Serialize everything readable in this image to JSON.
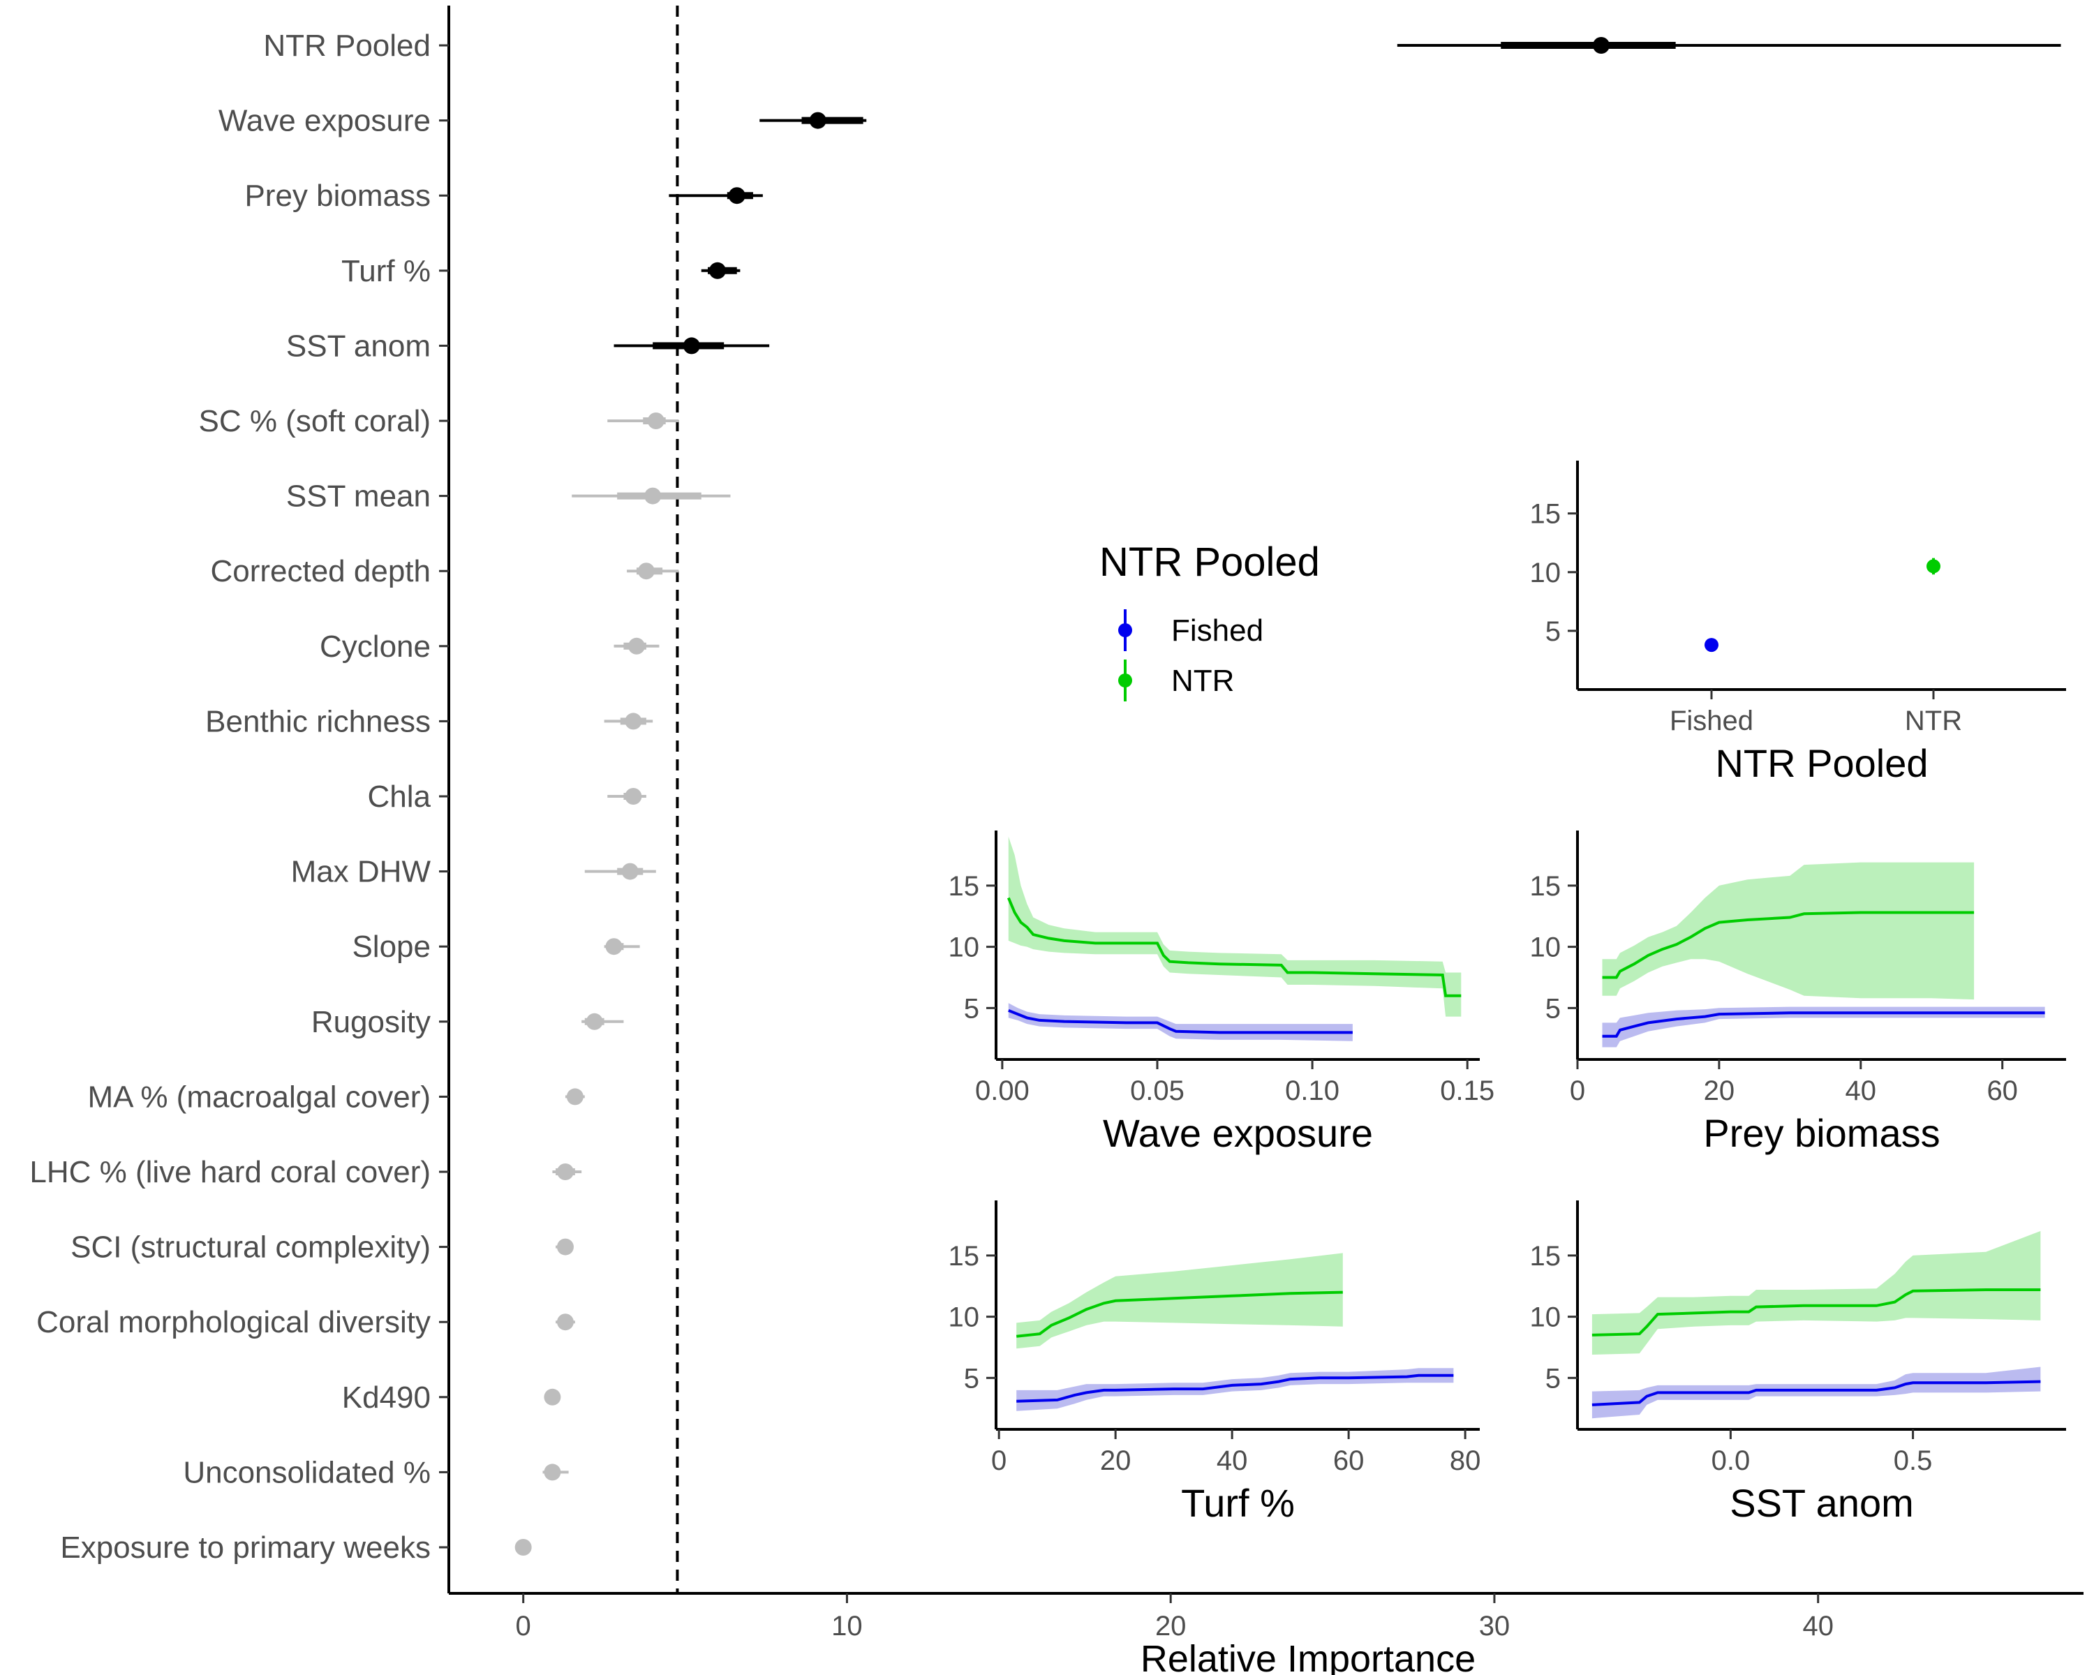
{
  "chart_data": {
    "type": "scatter",
    "main": {
      "xlabel": "Relative Importance",
      "xlim": [
        -2.3,
        48.2
      ],
      "xticks": [
        0,
        10,
        20,
        30,
        40
      ],
      "threshold": 4.76,
      "variables": [
        {
          "name": "NTR Pooled",
          "value": 33.3,
          "inner": [
            30.2,
            35.6
          ],
          "outer": [
            27.0,
            47.5
          ],
          "significant": true
        },
        {
          "name": "Wave exposure",
          "value": 9.1,
          "inner": [
            8.6,
            10.5
          ],
          "outer": [
            7.3,
            10.6
          ],
          "significant": true
        },
        {
          "name": "Prey biomass",
          "value": 6.6,
          "inner": [
            6.3,
            7.1
          ],
          "outer": [
            4.5,
            7.4
          ],
          "significant": true
        },
        {
          "name": "Turf %",
          "value": 6.0,
          "inner": [
            5.7,
            6.6
          ],
          "outer": [
            5.5,
            6.7
          ],
          "significant": true
        },
        {
          "name": "SST anom",
          "value": 5.2,
          "inner": [
            4.0,
            6.2
          ],
          "outer": [
            2.8,
            7.6
          ],
          "significant": true
        },
        {
          "name": "SC % (soft coral)",
          "value": 4.1,
          "inner": [
            3.7,
            4.4
          ],
          "outer": [
            2.6,
            4.8
          ],
          "significant": false
        },
        {
          "name": "SST mean",
          "value": 4.0,
          "inner": [
            2.9,
            5.5
          ],
          "outer": [
            1.5,
            6.4
          ],
          "significant": false
        },
        {
          "name": "Corrected depth",
          "value": 3.8,
          "inner": [
            3.5,
            4.3
          ],
          "outer": [
            3.2,
            4.8
          ],
          "significant": false
        },
        {
          "name": "Cyclone",
          "value": 3.5,
          "inner": [
            3.1,
            3.8
          ],
          "outer": [
            2.8,
            4.2
          ],
          "significant": false
        },
        {
          "name": "Benthic richness",
          "value": 3.4,
          "inner": [
            3.0,
            3.8
          ],
          "outer": [
            2.5,
            4.0
          ],
          "significant": false
        },
        {
          "name": "Chla",
          "value": 3.4,
          "inner": [
            3.1,
            3.6
          ],
          "outer": [
            2.6,
            3.8
          ],
          "significant": false
        },
        {
          "name": "Max DHW",
          "value": 3.3,
          "inner": [
            2.9,
            3.7
          ],
          "outer": [
            1.9,
            4.1
          ],
          "significant": false
        },
        {
          "name": "Slope",
          "value": 2.8,
          "inner": [
            2.6,
            3.1
          ],
          "outer": [
            2.5,
            3.6
          ],
          "significant": false
        },
        {
          "name": "Rugosity",
          "value": 2.2,
          "inner": [
            1.9,
            2.5
          ],
          "outer": [
            1.8,
            3.1
          ],
          "significant": false
        },
        {
          "name": "MA % (macroalgal cover)",
          "value": 1.6,
          "inner": [
            1.4,
            1.8
          ],
          "outer": [
            1.3,
            1.9
          ],
          "significant": false
        },
        {
          "name": "LHC % (live hard coral cover)",
          "value": 1.3,
          "inner": [
            1.0,
            1.6
          ],
          "outer": [
            0.9,
            1.8
          ],
          "significant": false
        },
        {
          "name": "SCI (structural complexity)",
          "value": 1.3,
          "inner": [
            1.1,
            1.4
          ],
          "outer": [
            1.0,
            1.5
          ],
          "significant": false
        },
        {
          "name": "Coral morphological diversity",
          "value": 1.3,
          "inner": [
            1.1,
            1.5
          ],
          "outer": [
            1.0,
            1.6
          ],
          "significant": false
        },
        {
          "name": "Kd490",
          "value": 0.9,
          "inner": [
            0.8,
            1.0
          ],
          "outer": [
            0.7,
            1.1
          ],
          "significant": false
        },
        {
          "name": "Unconsolidated %",
          "value": 0.9,
          "inner": [
            0.7,
            1.1
          ],
          "outer": [
            0.6,
            1.4
          ],
          "significant": false
        },
        {
          "name": "Exposure to primary weeks",
          "value": 0.0,
          "inner": [
            -0.1,
            0.1
          ],
          "outer": [
            -0.1,
            0.1
          ],
          "significant": false
        }
      ]
    },
    "legend": {
      "title": "NTR Pooled",
      "entries": [
        {
          "label": "Fished",
          "color": "#0000ee"
        },
        {
          "label": "NTR",
          "color": "#00cc00"
        }
      ]
    },
    "insets": [
      {
        "key": "ntr",
        "type": "point",
        "title": "NTR Pooled",
        "categories": [
          "Fished",
          "NTR"
        ],
        "ylim": [
          0,
          19.5
        ],
        "yticks": [
          5,
          10,
          15
        ],
        "points": [
          {
            "category": "Fished",
            "y": 3.8,
            "lo": 3.5,
            "hi": 4.1,
            "color": "#0000ee"
          },
          {
            "category": "NTR",
            "y": 10.5,
            "lo": 9.8,
            "hi": 11.2,
            "color": "#00cc00"
          }
        ]
      },
      {
        "key": "wave",
        "type": "line",
        "title": "Wave exposure",
        "xlim": [
          -0.002,
          0.154
        ],
        "ylim": [
          0.8,
          19.5
        ],
        "xticks": [
          "0.00",
          "0.05",
          "0.10",
          "0.15"
        ],
        "yticks": [
          5,
          10,
          15
        ],
        "series": [
          {
            "name": "NTR",
            "color": "#00cc00",
            "fill": "#b4eeb4",
            "x": [
              0.002,
              0.004,
              0.006,
              0.008,
              0.01,
              0.015,
              0.02,
              0.03,
              0.05,
              0.052,
              0.054,
              0.06,
              0.07,
              0.09,
              0.092,
              0.1,
              0.12,
              0.142,
              0.143,
              0.148
            ],
            "y": [
              14.0,
              12.8,
              12.0,
              11.6,
              11.0,
              10.7,
              10.5,
              10.3,
              10.3,
              9.3,
              8.8,
              8.7,
              8.6,
              8.5,
              7.9,
              7.9,
              7.8,
              7.7,
              6.0,
              6.0
            ],
            "lo": [
              10.5,
              10.3,
              10.1,
              10.0,
              9.8,
              9.6,
              9.5,
              9.4,
              9.4,
              8.4,
              7.9,
              7.8,
              7.7,
              7.5,
              6.9,
              6.9,
              6.8,
              6.6,
              4.3,
              4.3
            ],
            "hi": [
              19.0,
              17.5,
              15.0,
              13.5,
              12.4,
              11.8,
              11.5,
              11.2,
              11.2,
              10.2,
              9.7,
              9.6,
              9.5,
              9.4,
              8.9,
              8.9,
              8.9,
              8.8,
              7.9,
              7.9
            ]
          },
          {
            "name": "Fished",
            "color": "#0000ee",
            "fill": "#b4b4ee",
            "x": [
              0.002,
              0.005,
              0.008,
              0.012,
              0.02,
              0.04,
              0.05,
              0.054,
              0.056,
              0.07,
              0.09,
              0.113
            ],
            "y": [
              4.8,
              4.5,
              4.2,
              4.0,
              3.9,
              3.8,
              3.8,
              3.3,
              3.1,
              3.0,
              3.0,
              3.0
            ],
            "lo": [
              4.2,
              4.0,
              3.7,
              3.5,
              3.4,
              3.3,
              3.3,
              2.7,
              2.5,
              2.4,
              2.4,
              2.3
            ],
            "hi": [
              5.4,
              5.0,
              4.7,
              4.5,
              4.4,
              4.3,
              4.3,
              3.9,
              3.7,
              3.7,
              3.7,
              3.7
            ]
          }
        ]
      },
      {
        "key": "prey",
        "type": "line",
        "title": "Prey biomass",
        "xlim": [
          0,
          69
        ],
        "ylim": [
          0.8,
          19.5
        ],
        "xticks": [
          "0",
          "20",
          "40",
          "60"
        ],
        "yticks": [
          5,
          10,
          15
        ],
        "series": [
          {
            "name": "NTR",
            "color": "#00cc00",
            "fill": "#b4eeb4",
            "x": [
              3.5,
              5.5,
              6,
              8,
              10,
              12,
              14,
              16,
              18,
              20,
              24,
              30,
              32,
              40,
              50,
              56
            ],
            "y": [
              7.5,
              7.5,
              8.0,
              8.6,
              9.3,
              9.8,
              10.2,
              10.8,
              11.5,
              12.0,
              12.2,
              12.4,
              12.7,
              12.8,
              12.8,
              12.8
            ],
            "lo": [
              6.0,
              6.0,
              6.6,
              7.2,
              7.9,
              8.4,
              8.7,
              9.0,
              9.0,
              8.8,
              7.8,
              6.5,
              6.0,
              5.8,
              5.8,
              5.7
            ],
            "hi": [
              9.0,
              9.0,
              9.5,
              10.1,
              10.8,
              11.2,
              11.7,
              12.8,
              14.0,
              15.0,
              15.5,
              15.8,
              16.7,
              16.9,
              16.9,
              16.9
            ]
          },
          {
            "name": "Fished",
            "color": "#0000ee",
            "fill": "#b4b4ee",
            "x": [
              3.5,
              5.5,
              6,
              8,
              10,
              14,
              18,
              20,
              30,
              40,
              50,
              66
            ],
            "y": [
              2.7,
              2.7,
              3.2,
              3.5,
              3.8,
              4.1,
              4.3,
              4.5,
              4.6,
              4.6,
              4.6,
              4.6
            ],
            "lo": [
              1.8,
              1.8,
              2.3,
              2.7,
              3.1,
              3.5,
              3.8,
              4.1,
              4.2,
              4.2,
              4.2,
              4.2
            ],
            "hi": [
              3.8,
              3.8,
              4.2,
              4.4,
              4.6,
              4.8,
              4.9,
              5.0,
              5.1,
              5.1,
              5.1,
              5.1
            ]
          }
        ]
      },
      {
        "key": "turf",
        "type": "line",
        "title": "Turf %",
        "xlim": [
          -0.5,
          82.5
        ],
        "ylim": [
          0.8,
          19.5
        ],
        "xticks": [
          "0",
          "20",
          "40",
          "60",
          "80"
        ],
        "yticks": [
          5,
          10,
          15
        ],
        "series": [
          {
            "name": "NTR",
            "color": "#00cc00",
            "fill": "#b4eeb4",
            "x": [
              3,
              7,
              9,
              12,
              15,
              18,
              20,
              30,
              40,
              50,
              59
            ],
            "y": [
              8.4,
              8.6,
              9.3,
              9.9,
              10.6,
              11.1,
              11.3,
              11.5,
              11.7,
              11.9,
              12.0
            ],
            "lo": [
              7.4,
              7.6,
              8.3,
              8.8,
              9.3,
              9.6,
              9.6,
              9.5,
              9.4,
              9.3,
              9.2
            ],
            "hi": [
              9.5,
              9.7,
              10.4,
              11.1,
              12.0,
              12.8,
              13.3,
              13.7,
              14.2,
              14.7,
              15.2
            ]
          },
          {
            "name": "Fished",
            "color": "#0000ee",
            "fill": "#b4b4ee",
            "x": [
              3,
              10,
              13,
              15,
              18,
              20,
              30,
              35,
              40,
              45,
              48,
              50,
              55,
              60,
              70,
              72,
              78
            ],
            "y": [
              3.1,
              3.2,
              3.6,
              3.8,
              4.0,
              4.0,
              4.1,
              4.1,
              4.4,
              4.5,
              4.7,
              4.9,
              5.0,
              5.0,
              5.1,
              5.2,
              5.2
            ],
            "lo": [
              2.3,
              2.5,
              2.9,
              3.2,
              3.5,
              3.5,
              3.6,
              3.6,
              3.9,
              4.0,
              4.2,
              4.4,
              4.5,
              4.5,
              4.6,
              4.6,
              4.6
            ],
            "hi": [
              4.0,
              4.0,
              4.3,
              4.5,
              4.5,
              4.5,
              4.6,
              4.6,
              4.9,
              5.0,
              5.2,
              5.4,
              5.5,
              5.5,
              5.7,
              5.8,
              5.8
            ]
          }
        ]
      },
      {
        "key": "sst",
        "type": "line",
        "title": "SST anom",
        "xlim": [
          -0.42,
          0.92
        ],
        "ylim": [
          0.8,
          19.5
        ],
        "xticks": [
          "0.0",
          "0.5"
        ],
        "xtick_values": [
          0.0,
          0.5
        ],
        "yticks": [
          5,
          10,
          15
        ],
        "series": [
          {
            "name": "NTR",
            "color": "#00cc00",
            "fill": "#b4eeb4",
            "x": [
              -0.38,
              -0.25,
              -0.23,
              -0.2,
              -0.1,
              0.0,
              0.05,
              0.07,
              0.2,
              0.4,
              0.45,
              0.48,
              0.5,
              0.7,
              0.85
            ],
            "y": [
              8.5,
              8.6,
              9.2,
              10.2,
              10.3,
              10.4,
              10.4,
              10.8,
              10.9,
              10.9,
              11.2,
              11.8,
              12.1,
              12.2,
              12.2
            ],
            "lo": [
              6.9,
              7.0,
              7.8,
              9.0,
              9.2,
              9.3,
              9.3,
              9.6,
              9.7,
              9.6,
              9.7,
              9.9,
              9.9,
              9.8,
              9.7
            ],
            "hi": [
              10.2,
              10.3,
              10.8,
              11.6,
              11.6,
              11.7,
              11.7,
              12.2,
              12.2,
              12.3,
              13.5,
              14.5,
              15.0,
              15.3,
              17.0
            ]
          },
          {
            "name": "Fished",
            "color": "#0000ee",
            "fill": "#b4b4ee",
            "x": [
              -0.38,
              -0.25,
              -0.23,
              -0.2,
              0.0,
              0.05,
              0.07,
              0.4,
              0.45,
              0.48,
              0.5,
              0.7,
              0.85
            ],
            "y": [
              2.8,
              3.0,
              3.5,
              3.8,
              3.8,
              3.8,
              4.0,
              4.0,
              4.2,
              4.5,
              4.6,
              4.6,
              4.7
            ],
            "lo": [
              1.7,
              2.0,
              2.8,
              3.2,
              3.2,
              3.2,
              3.5,
              3.5,
              3.6,
              3.7,
              3.8,
              3.8,
              3.9
            ],
            "hi": [
              3.9,
              4.0,
              4.2,
              4.4,
              4.4,
              4.4,
              4.5,
              4.5,
              4.8,
              5.3,
              5.4,
              5.4,
              5.9
            ]
          }
        ]
      }
    ]
  }
}
